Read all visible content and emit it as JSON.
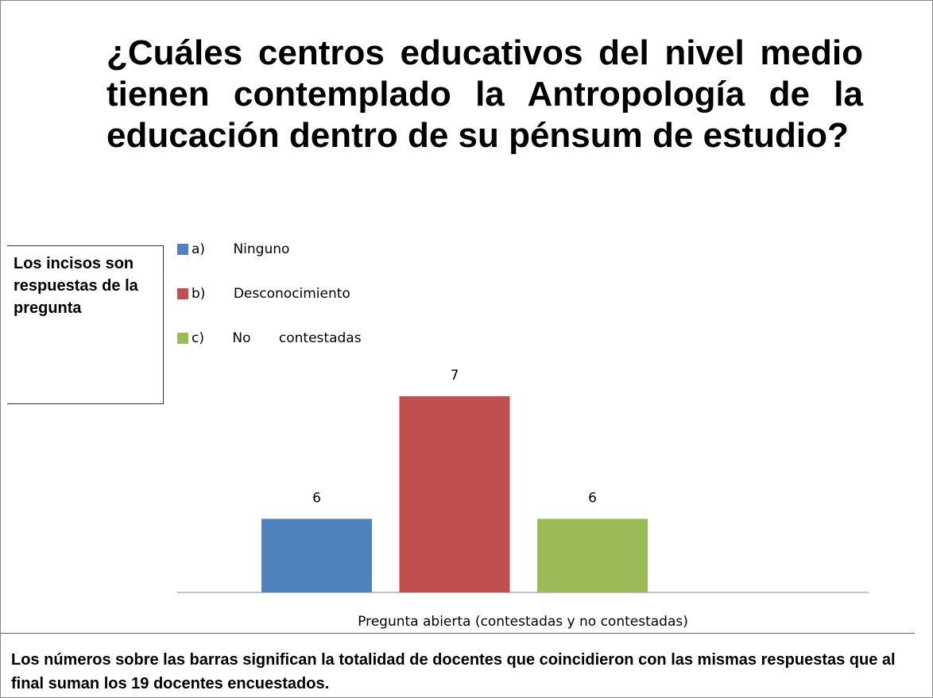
{
  "chart_data": {
    "type": "bar",
    "title": "¿Cuáles centros educativos del nivel medio tienen contemplado la Antropología de la educación dentro de su pénsum de estudio?",
    "side_note": "Los incisos son respuestas de la pregunta",
    "x_label": "Pregunta abierta (contestadas y no contestadas)",
    "footer_note": "Los números sobre las barras significan la totalidad de docentes que coincidieron con las mismas respuestas que al final suman los 19 docentes encuestados.",
    "ylim": [
      5.4,
      7
    ],
    "series": [
      {
        "name": "a) Ninguno",
        "color": "#4f81bd",
        "values": [
          6
        ]
      },
      {
        "name": "b) Desconocimiento",
        "color": "#c0504d",
        "values": [
          7
        ]
      },
      {
        "name": "c) No contestadas",
        "color": "#9bbb59",
        "values": [
          6
        ]
      }
    ]
  }
}
